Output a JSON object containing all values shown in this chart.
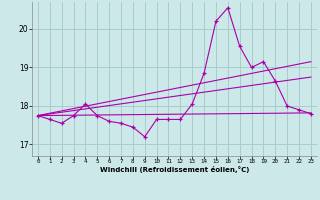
{
  "xlabel": "Windchill (Refroidissement éolien,°C)",
  "background_color": "#cce8e8",
  "grid_color": "#aacccc",
  "line_color": "#aa00aa",
  "xlim": [
    -0.5,
    23.5
  ],
  "ylim": [
    16.7,
    20.7
  ],
  "yticks": [
    17,
    18,
    19,
    20
  ],
  "xticks": [
    0,
    1,
    2,
    3,
    4,
    5,
    6,
    7,
    8,
    9,
    10,
    11,
    12,
    13,
    14,
    15,
    16,
    17,
    18,
    19,
    20,
    21,
    22,
    23
  ],
  "series": [
    {
      "x": [
        0,
        1,
        2,
        3,
        4,
        5,
        6,
        7,
        8,
        9,
        10,
        11,
        12,
        13,
        14,
        15,
        16,
        17,
        18,
        19,
        20,
        21,
        22,
        23
      ],
      "y": [
        17.75,
        17.65,
        17.55,
        17.75,
        18.05,
        17.75,
        17.6,
        17.55,
        17.45,
        17.2,
        17.65,
        17.65,
        17.65,
        18.05,
        18.85,
        20.2,
        20.55,
        19.55,
        19.0,
        19.15,
        18.65,
        18.0,
        17.9,
        17.8
      ]
    },
    {
      "x": [
        0,
        23
      ],
      "y": [
        17.75,
        17.82
      ]
    },
    {
      "x": [
        0,
        23
      ],
      "y": [
        17.75,
        18.75
      ]
    },
    {
      "x": [
        0,
        23
      ],
      "y": [
        17.75,
        19.15
      ]
    }
  ]
}
